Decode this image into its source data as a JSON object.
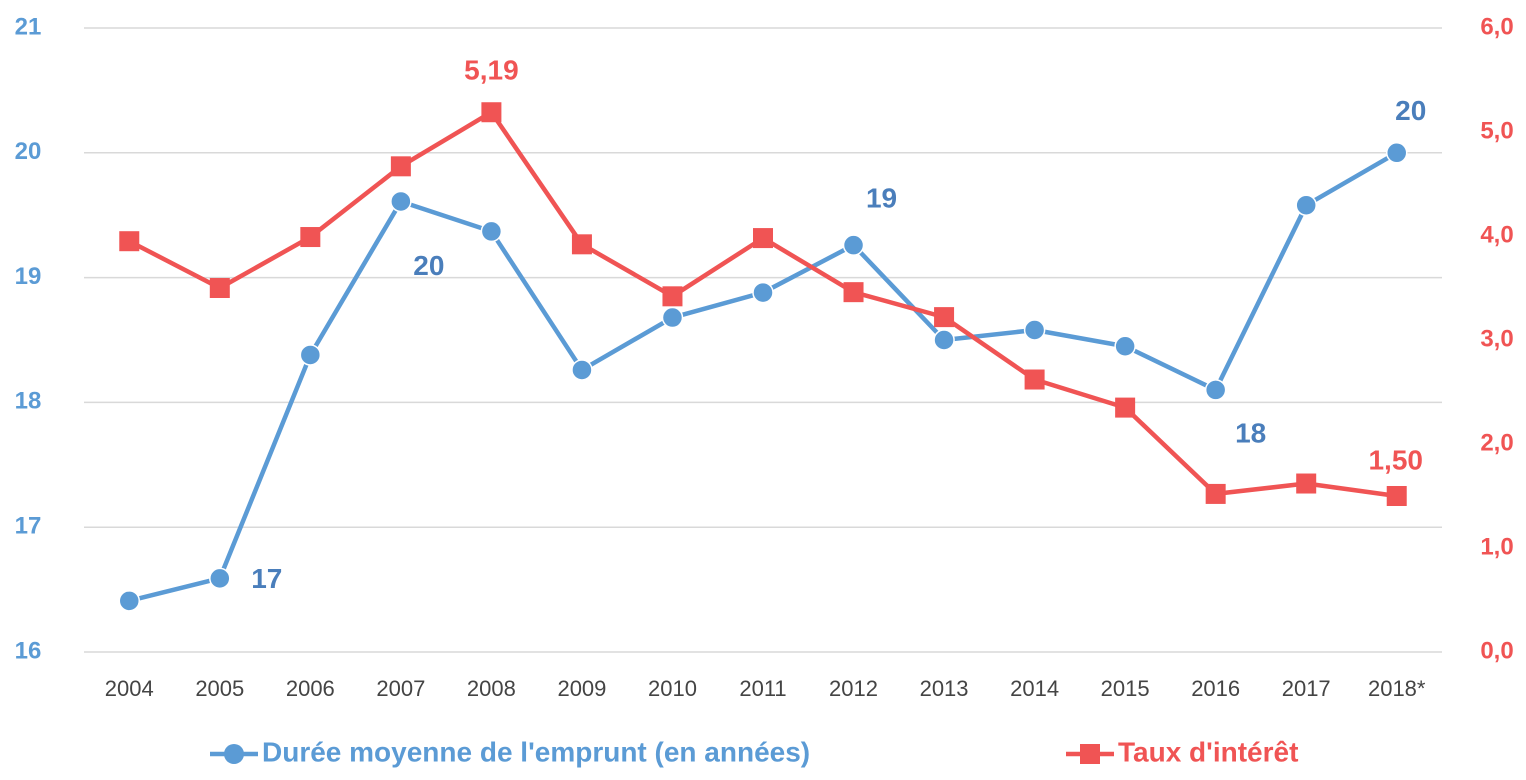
{
  "chart_data": {
    "type": "line",
    "categories": [
      "2004",
      "2005",
      "2006",
      "2007",
      "2008",
      "2009",
      "2010",
      "2011",
      "2012",
      "2013",
      "2014",
      "2015",
      "2016",
      "2017",
      "2018*"
    ],
    "series": [
      {
        "name": "Durée moyenne de l'emprunt (en années)",
        "color": "#5b9bd5",
        "label_color": "#4a7ebb",
        "marker": "circle",
        "values": [
          16.41,
          16.59,
          18.38,
          19.61,
          19.37,
          18.26,
          18.68,
          18.88,
          19.26,
          18.5,
          18.58,
          18.45,
          18.1,
          19.58,
          20.0
        ],
        "value_labels": [
          null,
          "17",
          null,
          "20",
          null,
          null,
          null,
          null,
          "19",
          null,
          null,
          null,
          "18",
          null,
          "20"
        ]
      },
      {
        "name": "Taux d'intérêt",
        "color": "#f05454",
        "label_color": "#f05454",
        "marker": "square",
        "axis": "y2",
        "values": [
          3.95,
          3.5,
          3.99,
          4.67,
          5.19,
          3.92,
          3.42,
          3.98,
          3.46,
          3.22,
          2.62,
          2.35,
          1.52,
          1.62,
          1.5
        ],
        "value_labels": [
          null,
          null,
          null,
          null,
          "5,19",
          null,
          null,
          null,
          null,
          null,
          null,
          null,
          null,
          null,
          "1,50"
        ]
      }
    ],
    "ylim": [
      16,
      21
    ],
    "yticks": [
      16,
      17,
      18,
      19,
      20,
      21
    ],
    "y2lim": [
      0,
      6
    ],
    "y2ticks": [
      {
        "value": 0,
        "label": "0,0"
      },
      {
        "value": 1,
        "label": "1,0"
      },
      {
        "value": 2,
        "label": "2,0"
      },
      {
        "value": 3,
        "label": "3,0"
      },
      {
        "value": 4,
        "label": "4,0"
      },
      {
        "value": 5,
        "label": "5,0"
      },
      {
        "value": 6,
        "label": "6,0"
      }
    ],
    "grid": true,
    "legend": "bottom"
  }
}
